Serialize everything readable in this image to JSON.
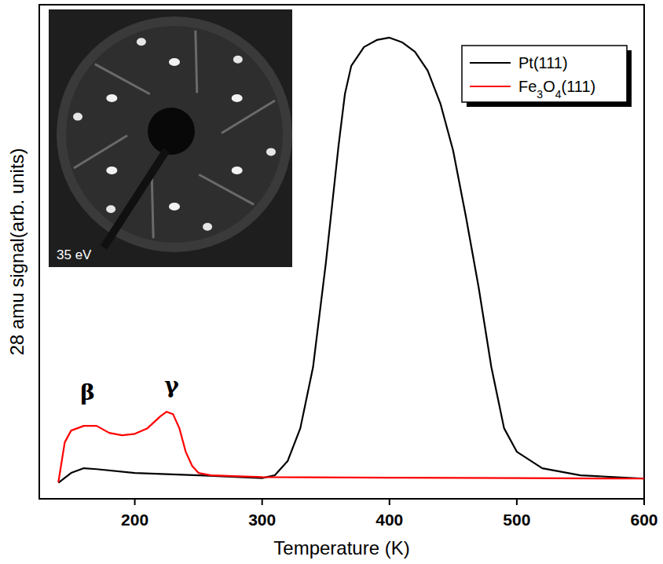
{
  "chart_data": {
    "type": "line",
    "x_label": "Temperature (K)",
    "y_label": "28 amu signal(arb. units)",
    "xlim": [
      125,
      600
    ],
    "xticks": [
      200,
      300,
      400,
      500,
      600
    ],
    "ylim": [
      0,
      105
    ],
    "tick_labels": "x",
    "legend": "upper right",
    "series": [
      {
        "name": "Pt(111)",
        "color": "#000000",
        "x": [
          140,
          150,
          160,
          170,
          200,
          250,
          300,
          310,
          320,
          330,
          340,
          350,
          360,
          365,
          370,
          380,
          390,
          400,
          410,
          420,
          430,
          440,
          450,
          460,
          470,
          480,
          490,
          500,
          520,
          550,
          600
        ],
        "values": [
          3.4,
          5.5,
          6.5,
          6.3,
          5.5,
          5.0,
          4.4,
          5.0,
          8,
          15,
          28,
          50,
          75,
          86,
          92,
          96,
          97.5,
          98,
          97,
          95,
          91,
          84,
          74,
          60,
          45,
          28,
          15,
          10,
          6.5,
          5,
          4.3
        ]
      },
      {
        "name": "Fe3O4(111)",
        "color": "#ff0000",
        "x": [
          140,
          145,
          150,
          160,
          170,
          180,
          190,
          200,
          210,
          220,
          225,
          230,
          235,
          240,
          245,
          250,
          260,
          300,
          400,
          500,
          600
        ],
        "values": [
          3.5,
          12,
          14.5,
          15.5,
          15.5,
          14,
          13.5,
          13.8,
          15,
          17.5,
          18.5,
          18,
          15,
          10,
          7,
          5.5,
          5,
          4.6,
          4.5,
          4.4,
          4.3
        ]
      }
    ],
    "annotations": [
      {
        "text": "β",
        "x": 163,
        "y": 21
      },
      {
        "text": "γ",
        "x": 229,
        "y": 22.5
      }
    ],
    "inset_label": "35 eV"
  }
}
